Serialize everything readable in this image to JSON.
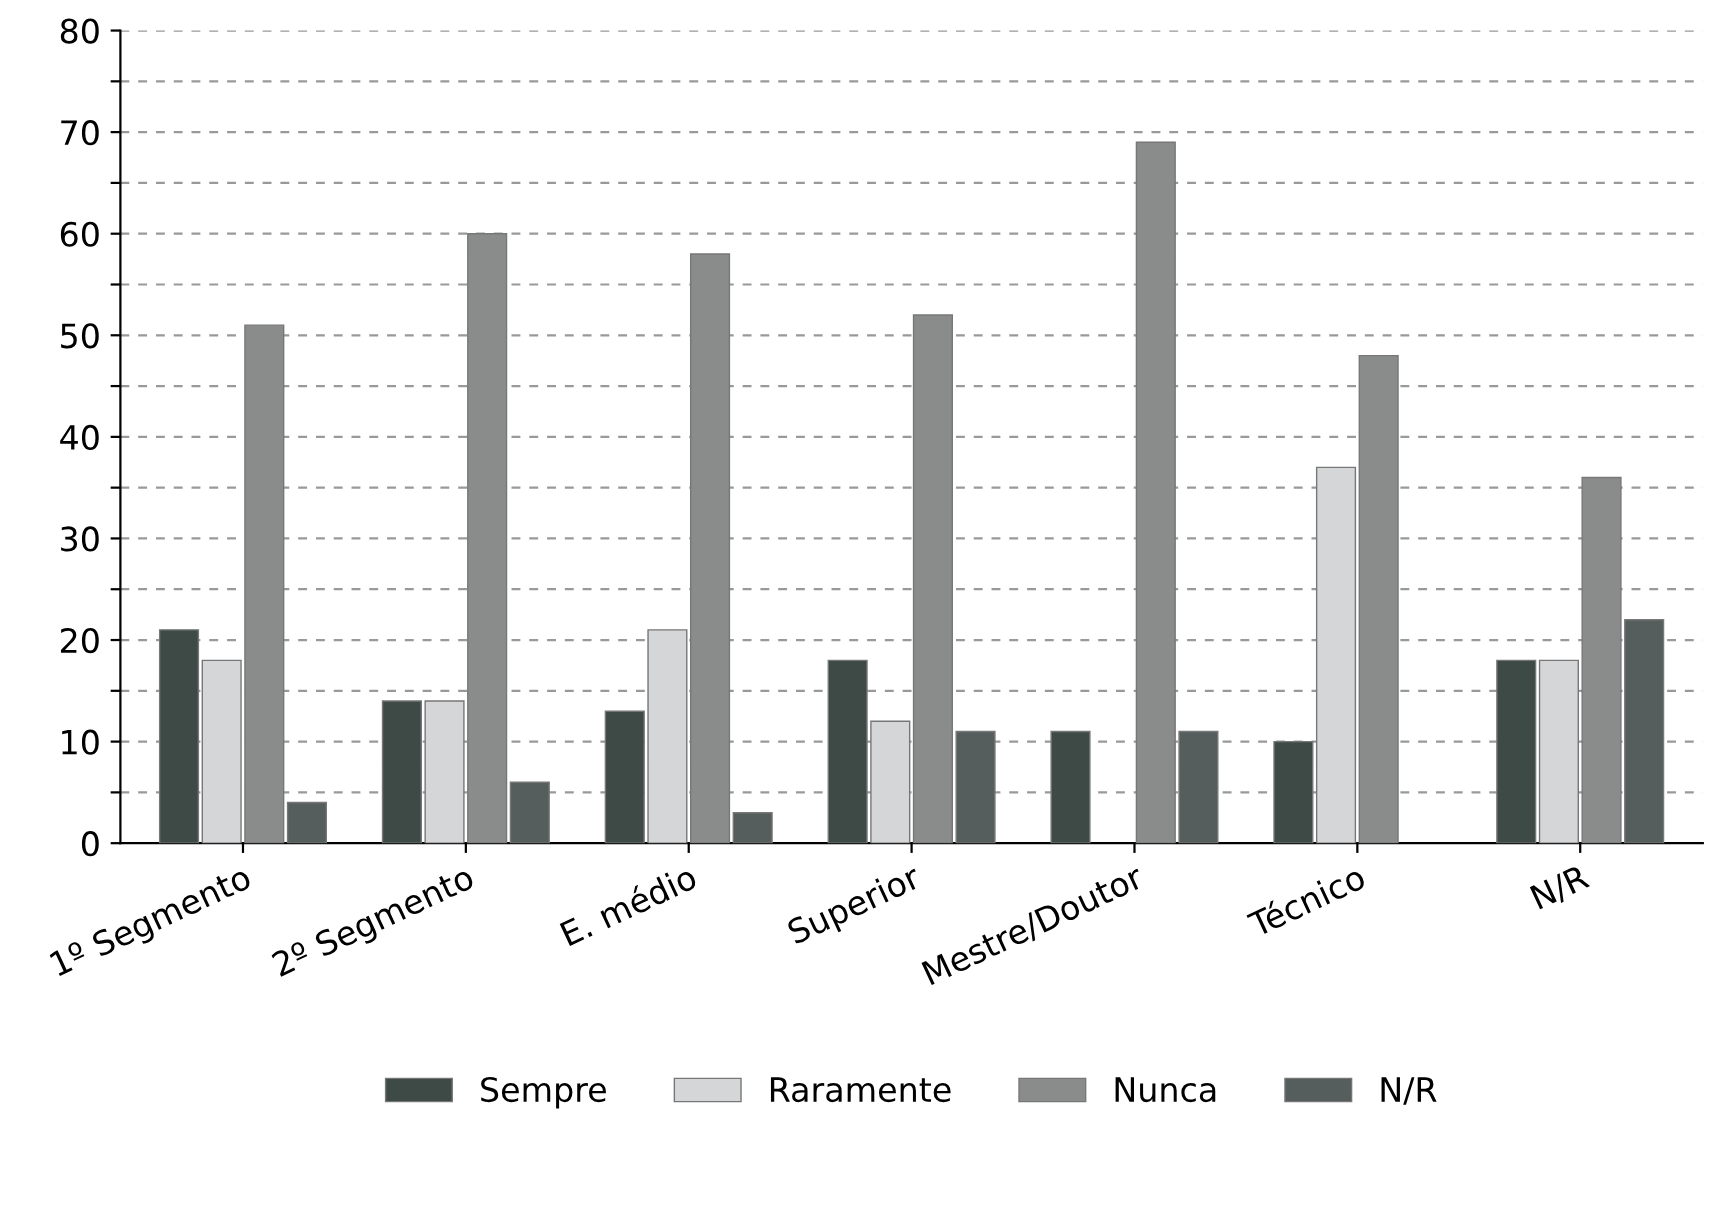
{
  "chart_data": {
    "type": "bar",
    "categories": [
      "1º Segmento",
      "2º Segmento",
      "E. médio",
      "Superior",
      "Mestre/Doutor",
      "Técnico",
      "N/R"
    ],
    "series": [
      {
        "name": "Sempre",
        "color": "#3d4a45",
        "values": [
          21,
          14,
          13,
          18,
          11,
          10,
          18
        ]
      },
      {
        "name": "Raramente",
        "color": "#d4d6d8",
        "values": [
          18,
          14,
          21,
          12,
          null,
          37,
          18
        ]
      },
      {
        "name": "Nunca",
        "color": "#8a8c8c",
        "values": [
          51,
          60,
          58,
          52,
          69,
          48,
          36
        ]
      },
      {
        "name": "N/R",
        "color": "#555e5c",
        "values": [
          4,
          6,
          3,
          11,
          11,
          null,
          22
        ]
      }
    ],
    "ylim": [
      0,
      80
    ],
    "yticks": [
      0,
      {
        "value": 5,
        "label": null
      },
      10,
      {
        "value": 15,
        "label": null
      },
      20,
      {
        "value": 25,
        "label": null
      },
      30,
      {
        "value": 35,
        "label": null
      },
      40,
      {
        "value": 45,
        "label": null
      },
      50,
      {
        "value": 55,
        "label": null
      },
      60,
      {
        "value": 65,
        "label": null
      },
      70,
      {
        "value": 75,
        "label": null
      },
      80
    ],
    "grid": "y",
    "legend": "bottom"
  }
}
